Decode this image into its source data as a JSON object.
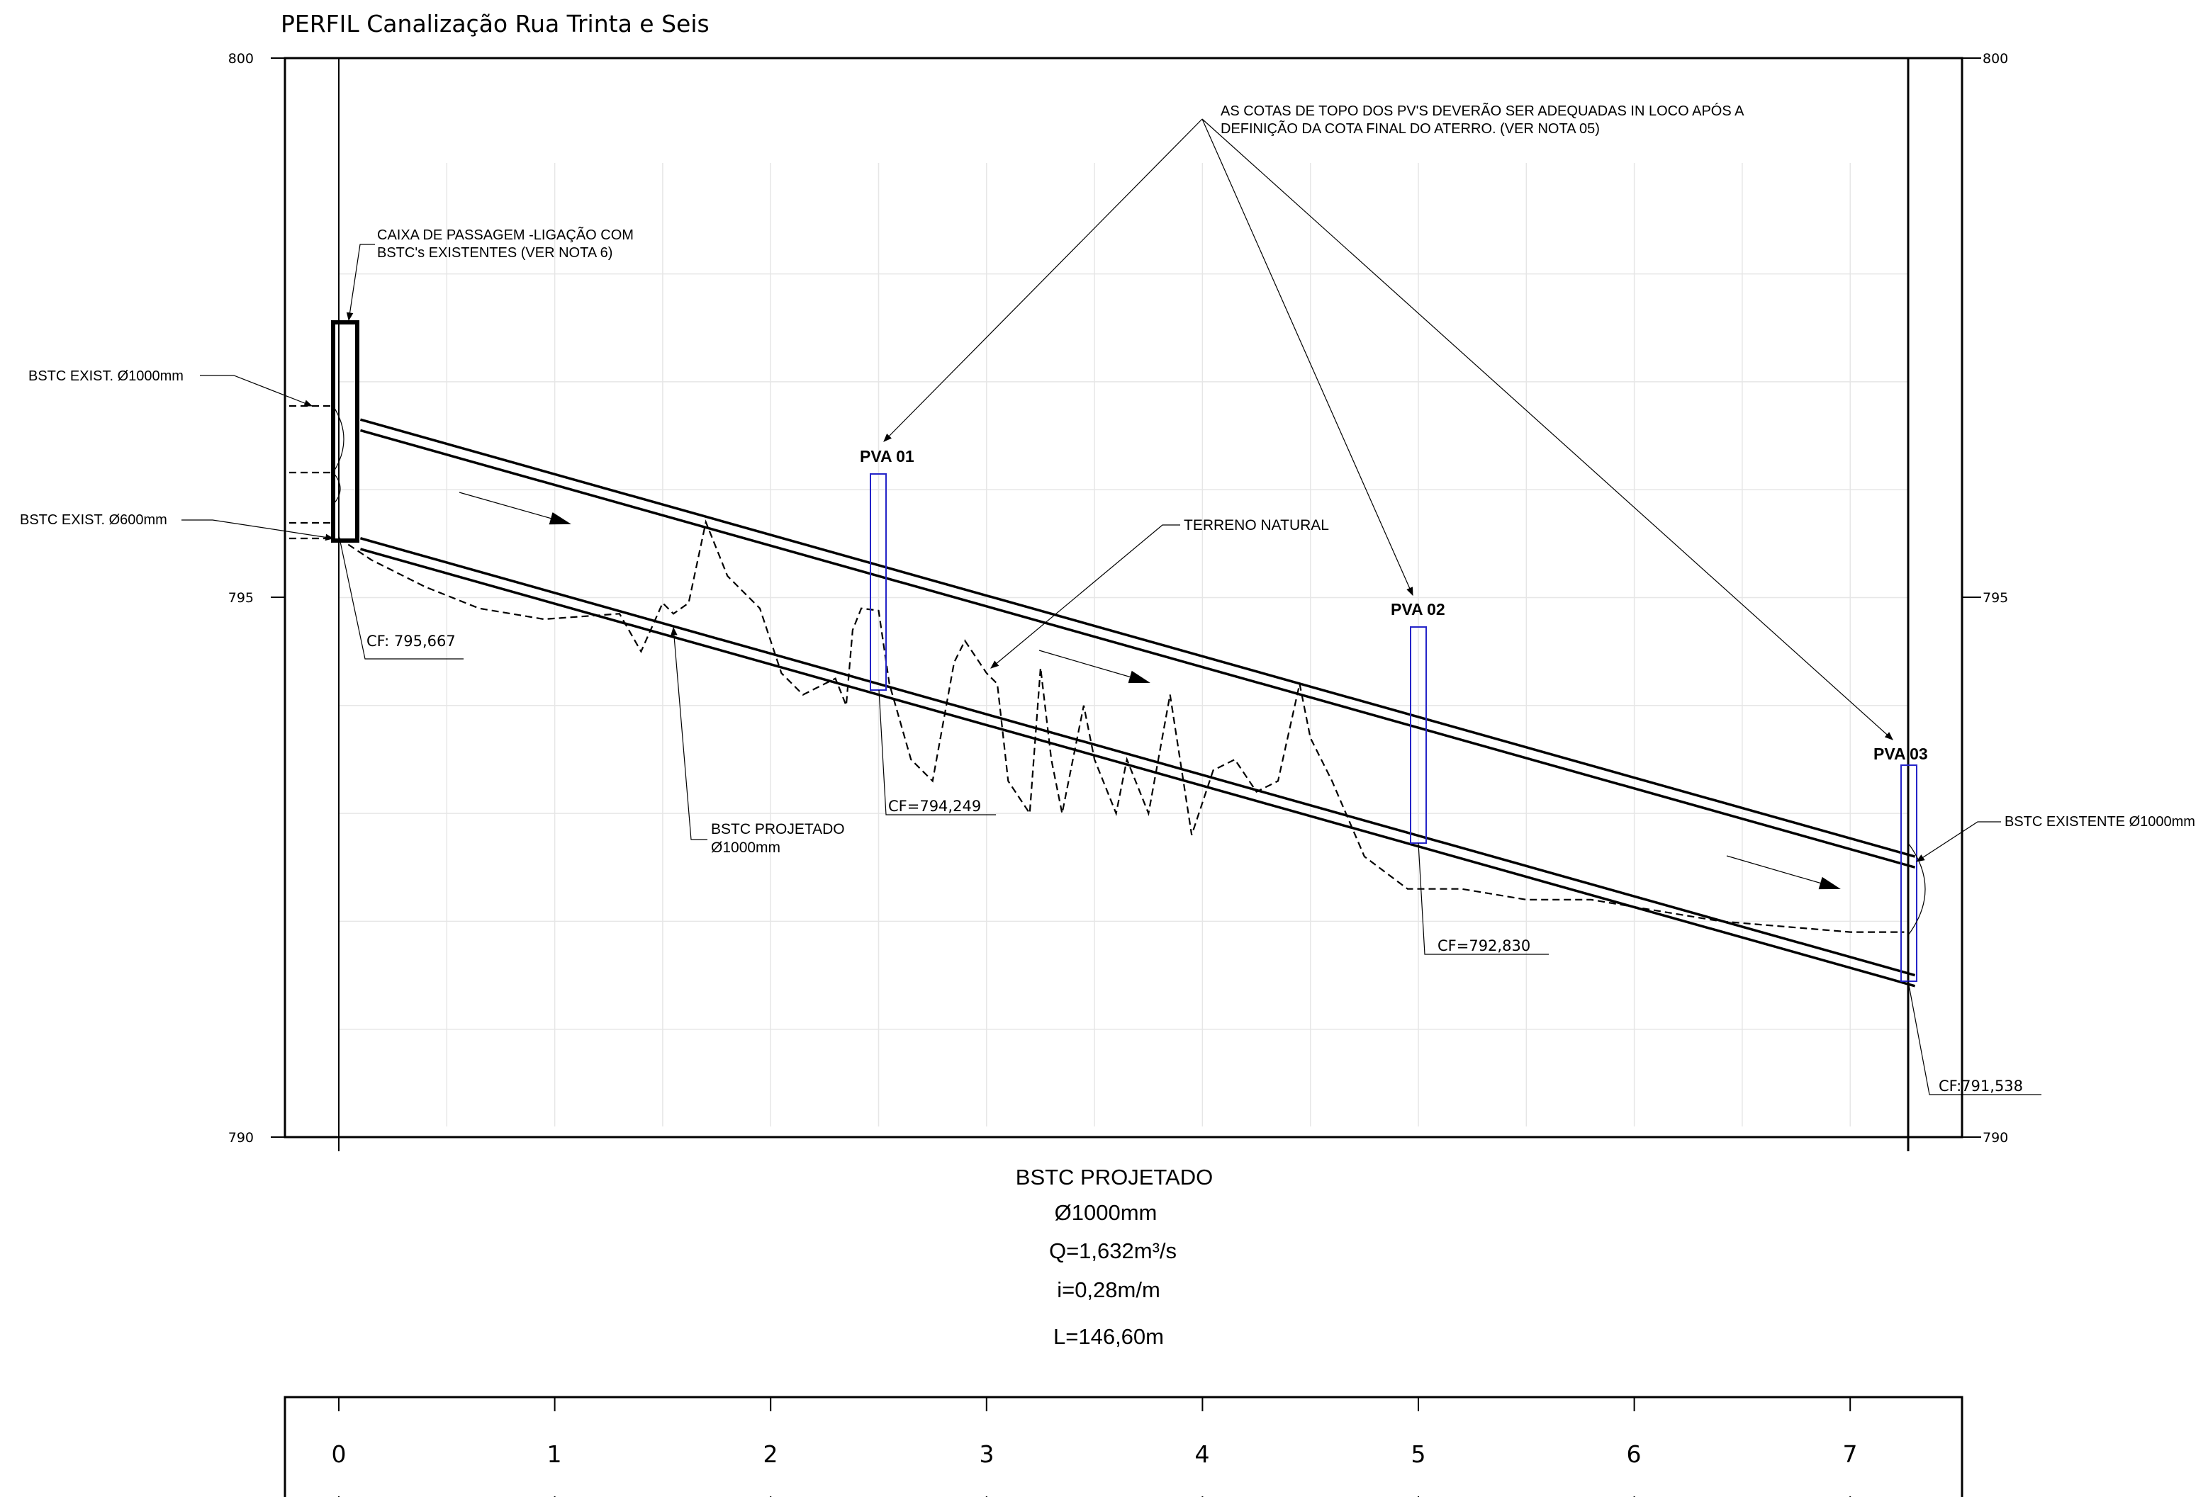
{
  "title": "PERFIL  Canalização  Rua  Trinta  e  Seis",
  "y_axis": {
    "ticks": [
      "800",
      "795",
      "790"
    ]
  },
  "x_axis": {
    "ticks": [
      "0",
      "1",
      "2",
      "3",
      "4",
      "5",
      "6",
      "7"
    ]
  },
  "wells": [
    {
      "label": "PVA  01",
      "station": 2.5,
      "cf": "CF=794,249"
    },
    {
      "label": "PVA  02",
      "station": 5.0,
      "cf": "CF=792,830"
    },
    {
      "label": "PVA  03",
      "station": 7.3,
      "cf": "CF:791,538"
    }
  ],
  "box_cf": "CF: 795,667",
  "notes": {
    "top_line1": "AS COTAS DE TOPO DOS PV'S DEVERÃO SER ADEQUADAS IN LOCO APÓS A",
    "top_line2": "DEFINIÇÃO DA COTA FINAL DO ATERRO. (VER NOTA 05)",
    "caixa_line1": "CAIXA DE PASSAGEM -LIGAÇÃO COM",
    "caixa_line2": "BSTC's EXISTENTES (VER NOTA 6)",
    "exist_1000": "BSTC EXIST. Ø1000mm",
    "exist_600": "BSTC EXIST. Ø600mm",
    "terreno": "TERRENO NATURAL",
    "projetado_line1": "BSTC  PROJETADO",
    "projetado_line2": "Ø1000mm",
    "existente": "BSTC EXISTENTE Ø1000mm"
  },
  "summary": {
    "line1": "BSTC PROJETADO",
    "line2": "Ø1000mm",
    "line3": "Q=1,632m³/s",
    "line4": "i=0,28m/m",
    "line5": "L=146,60m"
  },
  "chart_data": {
    "type": "line",
    "ylim": [
      790,
      800
    ],
    "xlim": [
      -0.5,
      7.5
    ],
    "series": [
      {
        "values_x": [
          0.1,
          7.3
        ],
        "values_y": [
          796.65,
          792.6
        ]
      },
      {
        "values_x": [
          0.1,
          7.3
        ],
        "values_y": [
          796.55,
          792.5
        ]
      },
      {
        "values_x": [
          0.1,
          7.3
        ],
        "values_y": [
          795.55,
          791.5
        ]
      },
      {
        "values_x": [
          0.1,
          7.3
        ],
        "values_y": [
          795.45,
          791.4
        ]
      },
      {
        "values_x": [
          0.0,
          0.15,
          0.4,
          0.65,
          0.95,
          1.3,
          1.4,
          1.5,
          1.55,
          1.62,
          1.7,
          1.8,
          1.95,
          2.05,
          2.15,
          2.25,
          2.3,
          2.35,
          2.38,
          2.42,
          2.5,
          2.55,
          2.65,
          2.75,
          2.85,
          2.9,
          3.0,
          3.05,
          3.1,
          3.2,
          3.25,
          3.3,
          3.35,
          3.45,
          3.5,
          3.6,
          3.65,
          3.75,
          3.85,
          3.95,
          4.05,
          4.15,
          4.25,
          4.35,
          4.45,
          4.5,
          4.6,
          4.75,
          4.95,
          5.2,
          5.5,
          5.8,
          6.1,
          6.4,
          6.7,
          7.0,
          7.25
        ],
        "values_y": [
          795.55,
          795.35,
          795.1,
          794.9,
          794.8,
          794.85,
          794.5,
          794.95,
          794.85,
          794.95,
          795.7,
          795.2,
          794.9,
          794.3,
          794.1,
          794.2,
          794.25,
          794.0,
          794.7,
          794.9,
          794.88,
          794.2,
          793.5,
          793.3,
          794.4,
          794.6,
          794.3,
          794.2,
          793.3,
          793.0,
          794.35,
          793.5,
          793.0,
          794.0,
          793.5,
          793.0,
          793.5,
          793.0,
          794.1,
          792.8,
          793.4,
          793.5,
          793.2,
          793.3,
          794.2,
          793.7,
          793.3,
          792.6,
          792.3,
          792.3,
          792.2,
          792.2,
          792.1,
          792.0,
          791.95,
          791.9,
          791.9
        ]
      }
    ]
  }
}
